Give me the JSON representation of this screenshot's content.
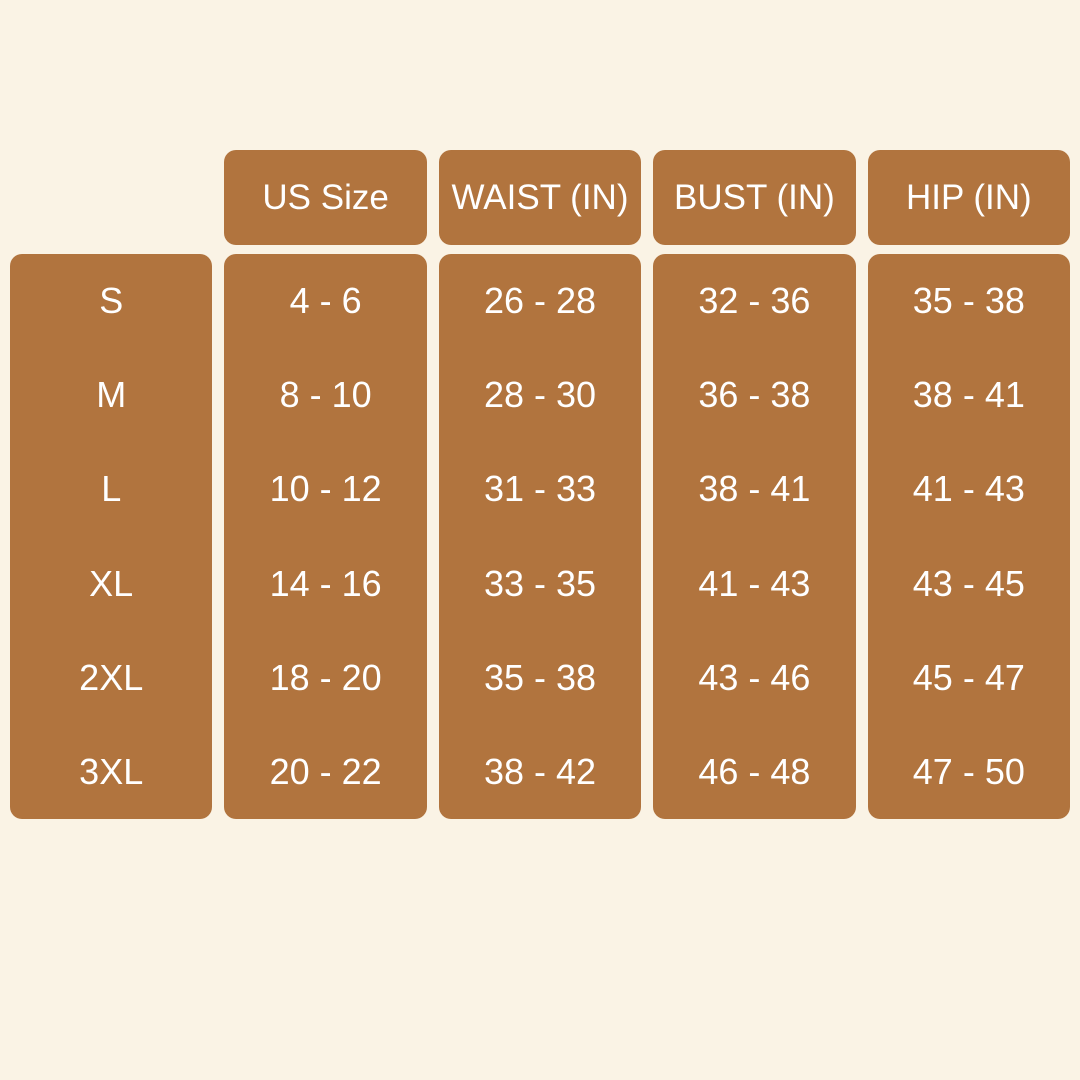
{
  "colors": {
    "background": "#faf3e5",
    "cell_fill": "#b1743e",
    "cell_text": "#ffffff"
  },
  "chart_data": {
    "type": "table",
    "columns": [
      "",
      "US Size",
      "WAIST (IN)",
      "BUST (IN)",
      "HIP (IN)"
    ],
    "rows": [
      [
        "S",
        "4 - 6",
        "26 - 28",
        "32 - 36",
        "35 - 38"
      ],
      [
        "M",
        "8 - 10",
        "28 - 30",
        "36 - 38",
        "38 - 41"
      ],
      [
        "L",
        "10 - 12",
        "31 - 33",
        "38 - 41",
        "41 - 43"
      ],
      [
        "XL",
        "14 - 16",
        "33 - 35",
        "41 - 43",
        "43 - 45"
      ],
      [
        "2XL",
        "18 - 20",
        "35 - 38",
        "43 - 46",
        "45 - 47"
      ],
      [
        "3XL",
        "20 - 22",
        "38 - 42",
        "46 - 48",
        "47 - 50"
      ]
    ],
    "layout": {
      "grid": false,
      "header_row_on_columns": [
        "US Size",
        "WAIST (IN)",
        "BUST (IN)",
        "HIP (IN)"
      ],
      "first_column_has_no_header": true
    }
  }
}
